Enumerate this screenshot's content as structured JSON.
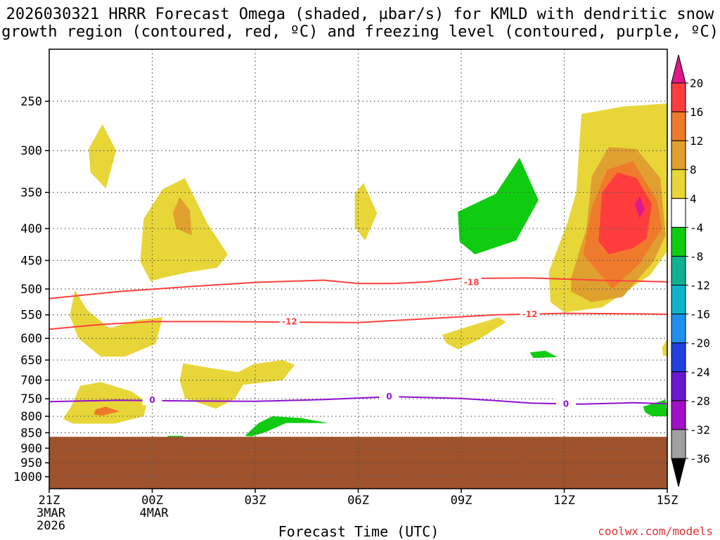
{
  "title": "2026030321 HRRR Forecast Omega (shaded, µbar/s) for KMLD with dendritic snow\ngrowth region (contoured, red, ºC) and freezing level (contoured, purple, ºC)",
  "xlabel": "Forecast Time (UTC)",
  "credit": "coolwx.com/models",
  "chart_data": {
    "type": "contour",
    "x_ticks": [
      {
        "hour": 0,
        "label": "21Z",
        "sub": [
          "3MAR",
          "2026"
        ]
      },
      {
        "hour": 3,
        "label": "00Z",
        "sub": [
          "4MAR"
        ]
      },
      {
        "hour": 6,
        "label": "03Z",
        "sub": []
      },
      {
        "hour": 9,
        "label": "06Z",
        "sub": []
      },
      {
        "hour": 12,
        "label": "09Z",
        "sub": []
      },
      {
        "hour": 15,
        "label": "12Z",
        "sub": []
      },
      {
        "hour": 18,
        "label": "15Z",
        "sub": []
      }
    ],
    "xlim": [
      0,
      18
    ],
    "y_ticks": [
      250,
      300,
      350,
      400,
      450,
      500,
      550,
      600,
      650,
      700,
      750,
      800,
      850,
      900,
      950,
      1000
    ],
    "ylim": [
      1050,
      200
    ],
    "y_scale": "log",
    "terrain_top_hPa": 863,
    "colorbar": {
      "labels": [
        "20",
        "16",
        "12",
        "8",
        "4",
        "-4",
        "-8",
        "-12",
        "-16",
        "-20",
        "-24",
        "-28",
        "-32",
        "-36"
      ],
      "colors": [
        "#ff3d3d",
        "#f07a2b",
        "#e0a030",
        "#e8d638",
        "#ffffff",
        "#10cc10",
        "#10b090",
        "#10b4c8",
        "#2090f0",
        "#2040e0",
        "#6a18d0",
        "#a010c8",
        "#a0a0a0"
      ],
      "top_color": "#e0188a",
      "bottom_color": "#000000"
    },
    "omega_regions": [
      {
        "color": "#e8d638",
        "points": [
          [
            1.15,
            298
          ],
          [
            1.55,
            272
          ],
          [
            1.95,
            300
          ],
          [
            1.65,
            345
          ],
          [
            1.2,
            325
          ]
        ]
      },
      {
        "color": "#e8d638",
        "points": [
          [
            2.75,
            386
          ],
          [
            3.3,
            346
          ],
          [
            3.95,
            332
          ],
          [
            4.6,
            392
          ],
          [
            5.2,
            440
          ],
          [
            4.9,
            462
          ],
          [
            4.05,
            470
          ],
          [
            3.3,
            480
          ],
          [
            2.95,
            486
          ],
          [
            2.65,
            452
          ]
        ]
      },
      {
        "color": "#e0a030",
        "points": [
          [
            3.6,
            378
          ],
          [
            3.8,
            356
          ],
          [
            4.1,
            374
          ],
          [
            4.15,
            410
          ],
          [
            3.7,
            400
          ]
        ]
      },
      {
        "color": "#e8d638",
        "points": [
          [
            0.75,
            502
          ],
          [
            1.1,
            540
          ],
          [
            1.75,
            578
          ],
          [
            2.6,
            560
          ],
          [
            3.3,
            555
          ],
          [
            3.1,
            612
          ],
          [
            2.2,
            642
          ],
          [
            1.5,
            642
          ],
          [
            0.85,
            600
          ],
          [
            0.6,
            552
          ]
        ]
      },
      {
        "color": "#e8d638",
        "points": [
          [
            8.9,
            352
          ],
          [
            9.15,
            338
          ],
          [
            9.55,
            378
          ],
          [
            9.2,
            418
          ],
          [
            8.9,
            398
          ]
        ]
      },
      {
        "color": "#e8d638",
        "points": [
          [
            3.9,
            658
          ],
          [
            4.6,
            668
          ],
          [
            5.5,
            680
          ],
          [
            5.95,
            660
          ],
          [
            6.8,
            650
          ],
          [
            7.15,
            662
          ],
          [
            6.8,
            700
          ],
          [
            5.65,
            712
          ],
          [
            5.4,
            750
          ],
          [
            4.85,
            778
          ],
          [
            3.95,
            748
          ],
          [
            3.8,
            700
          ]
        ]
      },
      {
        "color": "#e8d638",
        "points": [
          [
            0.65,
            770
          ],
          [
            0.9,
            715
          ],
          [
            1.5,
            705
          ],
          [
            2.4,
            730
          ],
          [
            2.85,
            760
          ],
          [
            2.75,
            800
          ],
          [
            1.9,
            822
          ],
          [
            0.7,
            822
          ],
          [
            0.4,
            808
          ]
        ]
      },
      {
        "color": "#f07a2b",
        "points": [
          [
            1.35,
            780
          ],
          [
            1.65,
            772
          ],
          [
            2.05,
            786
          ],
          [
            1.55,
            798
          ],
          [
            1.3,
            795
          ]
        ]
      },
      {
        "color": "#e8d638",
        "points": [
          [
            11.45,
            592
          ],
          [
            12.4,
            570
          ],
          [
            13.1,
            555
          ],
          [
            13.3,
            565
          ],
          [
            12.5,
            603
          ],
          [
            11.9,
            625
          ],
          [
            11.55,
            610
          ]
        ]
      },
      {
        "color": "#10cc10",
        "points": [
          [
            11.9,
            376
          ],
          [
            13.0,
            352
          ],
          [
            13.7,
            308
          ],
          [
            14.25,
            360
          ],
          [
            13.6,
            418
          ],
          [
            12.4,
            440
          ],
          [
            11.95,
            420
          ]
        ]
      },
      {
        "color": "#10cc10",
        "points": [
          [
            14.0,
            632
          ],
          [
            14.45,
            628
          ],
          [
            14.8,
            643
          ],
          [
            14.1,
            645
          ]
        ]
      },
      {
        "color": "#10cc10",
        "points": [
          [
            17.3,
            772
          ],
          [
            17.95,
            752
          ],
          [
            18,
            800
          ],
          [
            17.55,
            800
          ],
          [
            17.35,
            788
          ]
        ]
      },
      {
        "color": "#e8d638",
        "points": [
          [
            17.85,
            620
          ],
          [
            18,
            602
          ],
          [
            18,
            640
          ],
          [
            17.88,
            640
          ]
        ]
      },
      {
        "color": "#10cc10",
        "points": [
          [
            5.7,
            860
          ],
          [
            6.1,
            820
          ],
          [
            6.5,
            800
          ],
          [
            7.3,
            805
          ],
          [
            8.15,
            820
          ],
          [
            6.9,
            820
          ],
          [
            6.3,
            848
          ],
          [
            5.9,
            862
          ]
        ]
      },
      {
        "color": "#10cc10",
        "points": [
          [
            3.45,
            860
          ],
          [
            3.9,
            860
          ],
          [
            3.9,
            868
          ],
          [
            3.45,
            868
          ]
        ]
      },
      {
        "color": "#e8d638",
        "points": [
          [
            14.55,
            470
          ],
          [
            15.1,
            390
          ],
          [
            15.35,
            350
          ],
          [
            15.5,
            262
          ],
          [
            16.7,
            255
          ],
          [
            18,
            252
          ],
          [
            18,
            435
          ],
          [
            17.5,
            475
          ],
          [
            16.1,
            535
          ],
          [
            15.0,
            545
          ],
          [
            14.6,
            525
          ]
        ]
      },
      {
        "color": "#e0a030",
        "points": [
          [
            15.2,
            480
          ],
          [
            15.65,
            400
          ],
          [
            15.8,
            330
          ],
          [
            16.3,
            296
          ],
          [
            17.1,
            298
          ],
          [
            17.8,
            332
          ],
          [
            17.95,
            410
          ],
          [
            17.6,
            452
          ],
          [
            16.7,
            515
          ],
          [
            15.8,
            525
          ],
          [
            15.2,
            505
          ]
        ]
      },
      {
        "color": "#f07a2b",
        "points": [
          [
            15.55,
            440
          ],
          [
            15.8,
            370
          ],
          [
            16.25,
            322
          ],
          [
            17.0,
            312
          ],
          [
            17.7,
            360
          ],
          [
            17.85,
            400
          ],
          [
            17.2,
            455
          ],
          [
            16.4,
            500
          ],
          [
            16.0,
            470
          ]
        ]
      },
      {
        "color": "#ff3d3d",
        "points": [
          [
            16.0,
            420
          ],
          [
            16.1,
            350
          ],
          [
            16.55,
            325
          ],
          [
            17.1,
            332
          ],
          [
            17.55,
            365
          ],
          [
            17.4,
            415
          ],
          [
            17.0,
            430
          ],
          [
            16.3,
            440
          ]
        ]
      },
      {
        "color": "#e0188a",
        "points": [
          [
            17.05,
            365
          ],
          [
            17.2,
            355
          ],
          [
            17.35,
            372
          ],
          [
            17.2,
            385
          ]
        ]
      }
    ],
    "dendritic_contours": [
      {
        "label": "-18",
        "label_at": [
          12.3,
          488
        ],
        "color": "#ff4040",
        "points": [
          [
            0,
            518
          ],
          [
            2,
            505
          ],
          [
            4,
            496
          ],
          [
            6,
            488
          ],
          [
            8,
            484
          ],
          [
            9,
            490
          ],
          [
            10,
            490
          ],
          [
            11,
            487
          ],
          [
            12,
            481
          ],
          [
            14,
            480
          ],
          [
            16,
            484
          ],
          [
            18,
            487
          ]
        ]
      },
      {
        "label": "-12",
        "label_at": [
          7.0,
          564
        ],
        "label2_at": [
          14.0,
          549
        ],
        "color": "#ff4040",
        "points": [
          [
            0,
            580
          ],
          [
            1.5,
            570
          ],
          [
            3,
            564
          ],
          [
            5,
            564
          ],
          [
            7,
            565
          ],
          [
            9,
            566
          ],
          [
            11,
            558
          ],
          [
            13,
            550
          ],
          [
            15,
            547
          ],
          [
            17,
            548
          ],
          [
            18,
            549
          ]
        ]
      }
    ],
    "freezing_level": {
      "label": "0",
      "color": "#9010d0",
      "label_at": [
        [
          3.0,
          754
        ],
        [
          9.9,
          744
        ],
        [
          15.05,
          764
        ]
      ],
      "points": [
        [
          0,
          758
        ],
        [
          2,
          754
        ],
        [
          4,
          756
        ],
        [
          6,
          757
        ],
        [
          8,
          752
        ],
        [
          10,
          744
        ],
        [
          12,
          749
        ],
        [
          13,
          755
        ],
        [
          14,
          762
        ],
        [
          15.5,
          765
        ],
        [
          17,
          761
        ],
        [
          18,
          764
        ]
      ]
    }
  }
}
